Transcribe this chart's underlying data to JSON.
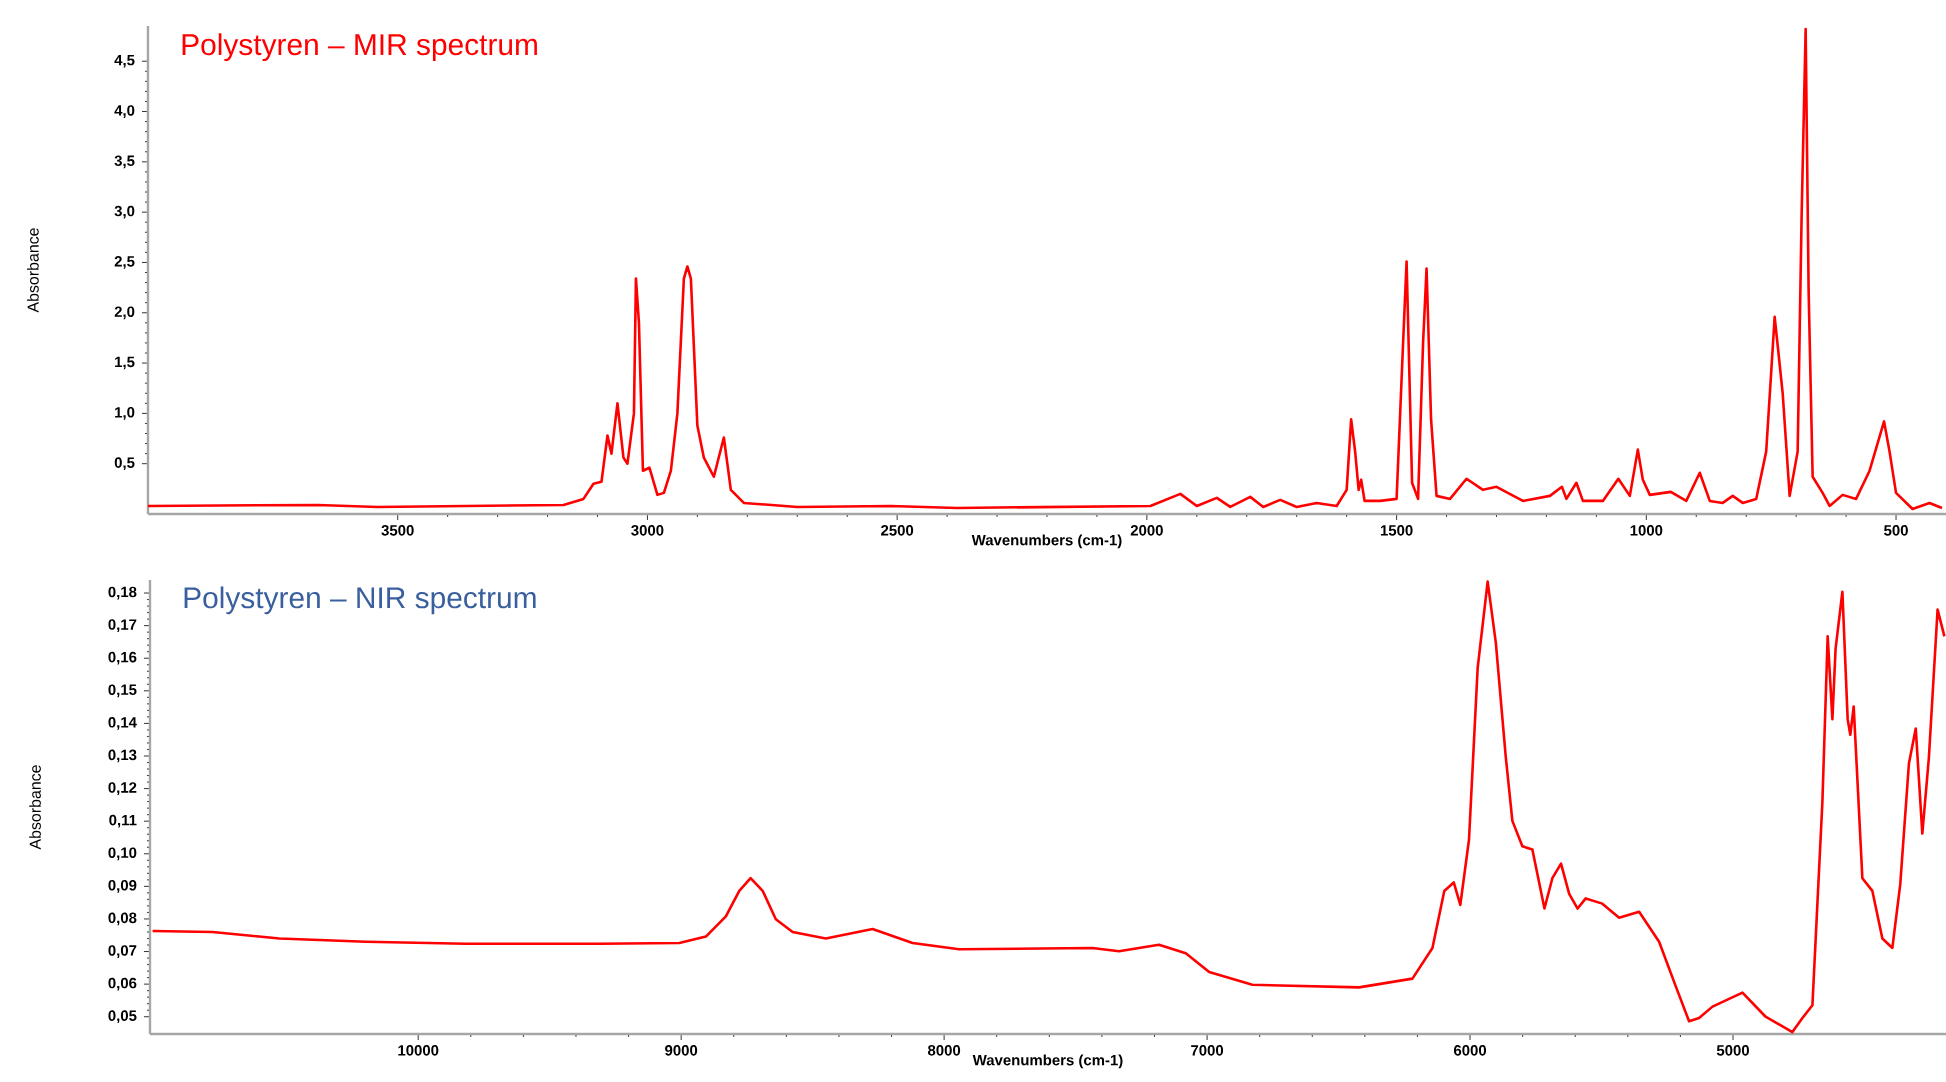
{
  "chart_data": [
    {
      "type": "line",
      "title": "Polystyren – MIR spectrum",
      "xlabel": "Wavenumbers (cm-1)",
      "ylabel": "Absorbance",
      "color": "#ff0000",
      "xlim": [
        4000,
        400
      ],
      "ylim": [
        0,
        4.85
      ],
      "xticks": [
        3500,
        3000,
        2500,
        2000,
        1500,
        1000,
        500
      ],
      "yticks": [
        {
          "value": 0.5,
          "label": "0,5"
        },
        {
          "value": 1.0,
          "label": "1,0"
        },
        {
          "value": 1.5,
          "label": "1,5"
        },
        {
          "value": 2.0,
          "label": "2,0"
        },
        {
          "value": 2.5,
          "label": "2,5"
        },
        {
          "value": 3.0,
          "label": "3,0"
        },
        {
          "value": 3.5,
          "label": "3,5"
        },
        {
          "value": 4.0,
          "label": "4,0"
        },
        {
          "value": 4.5,
          "label": "4,5"
        }
      ],
      "x": [
        4000,
        3660,
        3540,
        3168,
        3128,
        3108,
        3092,
        3080,
        3072,
        3060,
        3048,
        3040,
        3027,
        3023,
        3017,
        3009,
        2996,
        2980,
        2967,
        2953,
        2940,
        2927,
        2920,
        2913,
        2900,
        2887,
        2867,
        2847,
        2833,
        2807,
        2700,
        2513,
        2380,
        1993,
        1933,
        1900,
        1860,
        1833,
        1793,
        1767,
        1733,
        1700,
        1660,
        1620,
        1600,
        1591,
        1583,
        1576,
        1571,
        1564,
        1533,
        1500,
        1487,
        1480,
        1469,
        1457,
        1447,
        1440,
        1431,
        1420,
        1393,
        1360,
        1327,
        1300,
        1247,
        1193,
        1169,
        1160,
        1140,
        1127,
        1087,
        1056,
        1033,
        1017,
        1007,
        993,
        951,
        920,
        893,
        873,
        847,
        827,
        807,
        780,
        760,
        743,
        727,
        713,
        697,
        689,
        681,
        675,
        667,
        647,
        633,
        607,
        580,
        553,
        524,
        513,
        500,
        467,
        433,
        408
      ],
      "values": [
        0.08,
        0.09,
        0.07,
        0.09,
        0.15,
        0.3,
        0.32,
        0.78,
        0.6,
        1.1,
        0.56,
        0.5,
        1.0,
        2.34,
        1.9,
        0.43,
        0.46,
        0.19,
        0.21,
        0.43,
        1.0,
        2.34,
        2.46,
        2.34,
        0.88,
        0.56,
        0.37,
        0.76,
        0.24,
        0.11,
        0.07,
        0.08,
        0.06,
        0.08,
        0.2,
        0.08,
        0.16,
        0.07,
        0.17,
        0.07,
        0.14,
        0.07,
        0.11,
        0.08,
        0.24,
        0.94,
        0.62,
        0.24,
        0.34,
        0.13,
        0.13,
        0.15,
        1.7,
        2.51,
        0.31,
        0.15,
        1.7,
        2.44,
        0.94,
        0.18,
        0.15,
        0.35,
        0.24,
        0.27,
        0.13,
        0.18,
        0.27,
        0.15,
        0.31,
        0.13,
        0.13,
        0.35,
        0.18,
        0.64,
        0.34,
        0.19,
        0.22,
        0.13,
        0.41,
        0.13,
        0.11,
        0.18,
        0.11,
        0.15,
        0.62,
        1.96,
        1.2,
        0.18,
        0.62,
        2.98,
        4.82,
        2.21,
        0.37,
        0.21,
        0.08,
        0.19,
        0.15,
        0.43,
        0.92,
        0.62,
        0.21,
        0.05,
        0.11,
        0.06
      ]
    },
    {
      "type": "line",
      "title": "Polystyren – NIR spectrum",
      "xlabel": "Wavenumbers (cm-1)",
      "ylabel": "Absorbance",
      "color": "#ff0000",
      "xlim": [
        11020,
        4190
      ],
      "ylim": [
        0.0447,
        0.184
      ],
      "xticks": [
        10000,
        9000,
        8000,
        7000,
        6000,
        5000
      ],
      "yticks": [
        {
          "value": 0.05,
          "label": "0,05"
        },
        {
          "value": 0.06,
          "label": "0,06"
        },
        {
          "value": 0.07,
          "label": "0,07"
        },
        {
          "value": 0.08,
          "label": "0,08"
        },
        {
          "value": 0.09,
          "label": "0,09"
        },
        {
          "value": 0.1,
          "label": "0,10"
        },
        {
          "value": 0.11,
          "label": "0,11"
        },
        {
          "value": 0.12,
          "label": "0,12"
        },
        {
          "value": 0.13,
          "label": "0,13"
        },
        {
          "value": 0.14,
          "label": "0,14"
        },
        {
          "value": 0.15,
          "label": "0,15"
        },
        {
          "value": 0.16,
          "label": "0,16"
        },
        {
          "value": 0.17,
          "label": "0,17"
        },
        {
          "value": 0.18,
          "label": "0,18"
        }
      ],
      "x": [
        11010,
        10782,
        10528,
        10199,
        9819,
        9312,
        9007,
        8906,
        8830,
        8779,
        8736,
        8690,
        8640,
        8576,
        8450,
        8272,
        8120,
        7943,
        7436,
        7335,
        7183,
        7081,
        6992,
        6828,
        6422,
        6219,
        6143,
        6098,
        6062,
        6037,
        6004,
        5971,
        5933,
        5902,
        5864,
        5839,
        5801,
        5763,
        5717,
        5687,
        5654,
        5623,
        5591,
        5560,
        5497,
        5433,
        5357,
        5281,
        5218,
        5167,
        5129,
        5078,
        4964,
        4876,
        4774,
        4736,
        4698,
        4660,
        4640,
        4622,
        4610,
        4584,
        4564,
        4554,
        4541,
        4508,
        4470,
        4432,
        4394,
        4364,
        4331,
        4305,
        4280,
        4255,
        4222,
        4196
      ],
      "values": [
        0.0763,
        0.076,
        0.074,
        0.073,
        0.0724,
        0.0724,
        0.0726,
        0.0746,
        0.0808,
        0.0886,
        0.0925,
        0.0886,
        0.0799,
        0.076,
        0.074,
        0.0769,
        0.0726,
        0.0707,
        0.0711,
        0.0701,
        0.0721,
        0.0695,
        0.0637,
        0.0598,
        0.059,
        0.0617,
        0.0711,
        0.0886,
        0.0912,
        0.0843,
        0.1043,
        0.157,
        0.1835,
        0.1648,
        0.1296,
        0.1101,
        0.1023,
        0.1013,
        0.0832,
        0.0925,
        0.097,
        0.0877,
        0.0832,
        0.0863,
        0.0847,
        0.0804,
        0.0822,
        0.073,
        0.0594,
        0.0486,
        0.0496,
        0.0531,
        0.0574,
        0.05,
        0.0453,
        0.0496,
        0.0535,
        0.116,
        0.1667,
        0.1413,
        0.1628,
        0.1804,
        0.1413,
        0.1365,
        0.1452,
        0.0925,
        0.0886,
        0.074,
        0.0711,
        0.0906,
        0.1277,
        0.1384,
        0.1062,
        0.1296,
        0.1749,
        0.1667
      ]
    }
  ]
}
